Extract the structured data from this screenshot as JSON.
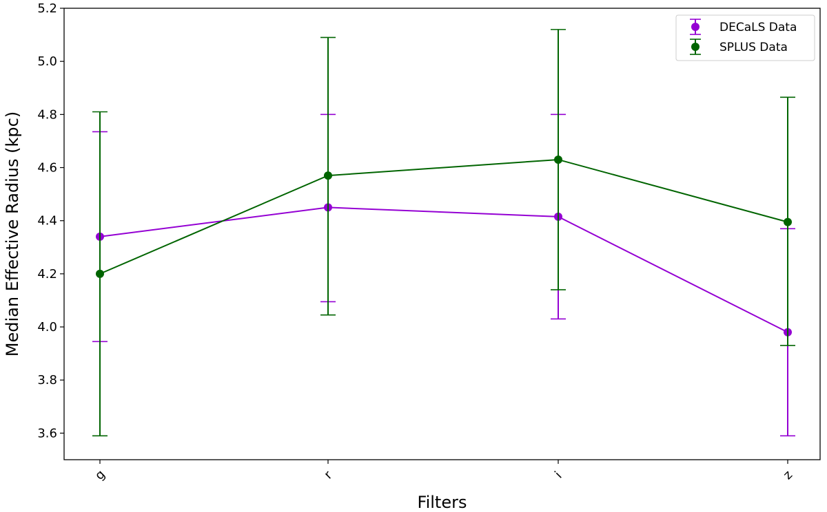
{
  "chart_data": {
    "type": "line",
    "categories": [
      "g",
      "r",
      "i",
      "z"
    ],
    "xlabel": "Filters",
    "ylabel": "Median Effective Radius (kpc)",
    "ylim": [
      3.5,
      5.2
    ],
    "yticks": [
      3.6,
      3.8,
      4.0,
      4.2,
      4.4,
      4.6,
      4.8,
      5.0,
      5.2
    ],
    "grid": false,
    "legend_position": "top-right",
    "error_bars": true,
    "series": [
      {
        "name": "DECaLS Data",
        "color": "#9400d3",
        "values": [
          4.34,
          4.45,
          4.415,
          3.98
        ],
        "err_low": [
          3.945,
          4.095,
          4.03,
          3.59
        ],
        "err_high": [
          4.735,
          4.8,
          4.8,
          4.37
        ]
      },
      {
        "name": "SPLUS Data",
        "color": "#006400",
        "values": [
          4.2,
          4.57,
          4.63,
          4.395
        ],
        "err_low": [
          3.59,
          4.045,
          4.14,
          3.93
        ],
        "err_high": [
          4.81,
          5.09,
          5.12,
          4.865
        ]
      }
    ]
  }
}
